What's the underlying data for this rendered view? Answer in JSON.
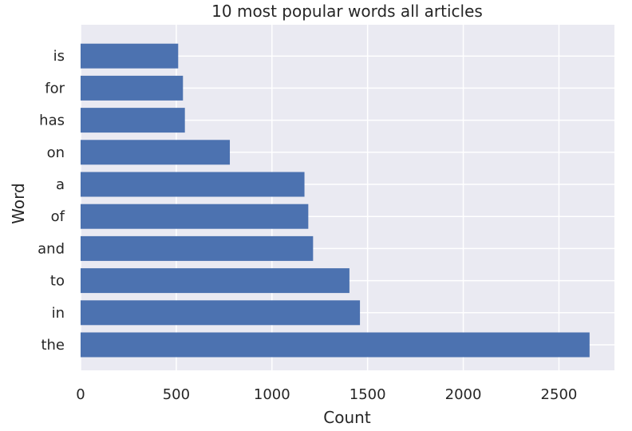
{
  "chart_data": {
    "type": "bar",
    "orientation": "horizontal",
    "title": "10 most popular words all articles",
    "xlabel": "Count",
    "ylabel": "Word",
    "categories": [
      "the",
      "in",
      "to",
      "and",
      "of",
      "a",
      "on",
      "has",
      "for",
      "is"
    ],
    "values": [
      2660,
      1460,
      1405,
      1215,
      1190,
      1170,
      780,
      545,
      535,
      510
    ],
    "xlim": [
      0,
      2790
    ],
    "xticks": [
      0,
      500,
      1000,
      1500,
      2000,
      2500
    ],
    "grid": true,
    "colors": {
      "bar": "#4c72b0",
      "plot_background": "#eaeaf2",
      "grid": "#ffffff",
      "text": "#262626"
    }
  }
}
